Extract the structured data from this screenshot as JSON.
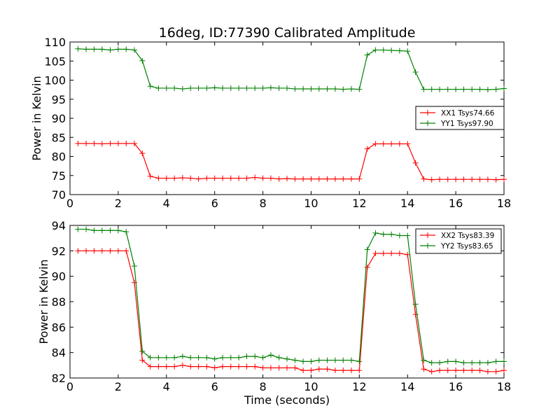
{
  "title": "16deg, ID:77390 Calibrated Amplitude",
  "chart_data": [
    {
      "type": "line",
      "xlabel": "",
      "ylabel": "Power in Kelvin",
      "xlim": [
        0,
        18
      ],
      "ylim": [
        70,
        110
      ],
      "xticks": [
        0,
        2,
        4,
        6,
        8,
        10,
        12,
        14,
        16,
        18
      ],
      "yticks": [
        70,
        75,
        80,
        85,
        90,
        95,
        100,
        105,
        110
      ],
      "grid": false,
      "legend": "right",
      "x": [
        0.33,
        0.67,
        1.0,
        1.33,
        1.67,
        2.0,
        2.33,
        2.67,
        3.0,
        3.33,
        3.67,
        4.0,
        4.33,
        4.67,
        5.0,
        5.33,
        5.67,
        6.0,
        6.33,
        6.67,
        7.0,
        7.33,
        7.67,
        8.0,
        8.33,
        8.67,
        9.0,
        9.33,
        9.67,
        10.0,
        10.33,
        10.67,
        11.0,
        11.33,
        11.67,
        12.0,
        12.33,
        12.67,
        13.0,
        13.33,
        13.67,
        14.0,
        14.33,
        14.67,
        15.0,
        15.33,
        15.67,
        16.0,
        16.33,
        16.67,
        17.0,
        17.33,
        17.67,
        18.0
      ],
      "series": [
        {
          "name": "XX1 Tsys74.66",
          "color": "#ff0000",
          "values": [
            83.4,
            83.4,
            83.4,
            83.3,
            83.4,
            83.4,
            83.4,
            83.4,
            80.8,
            74.8,
            74.3,
            74.3,
            74.3,
            74.4,
            74.3,
            74.1,
            74.3,
            74.3,
            74.3,
            74.3,
            74.3,
            74.3,
            74.5,
            74.3,
            74.3,
            74.1,
            74.2,
            74.1,
            74.1,
            74.1,
            74.1,
            74.1,
            74.1,
            74.1,
            74.1,
            74.1,
            82.0,
            83.3,
            83.3,
            83.3,
            83.3,
            83.3,
            78.3,
            74.1,
            73.9,
            74.0,
            74.0,
            74.0,
            74.0,
            74.0,
            74.0,
            74.0,
            73.9,
            74.0
          ]
        },
        {
          "name": "YY1 Tsys97.90",
          "color": "#008000",
          "values": [
            108.2,
            108.1,
            108.1,
            108.1,
            107.9,
            108.1,
            108.1,
            107.9,
            105.1,
            98.4,
            97.9,
            97.9,
            97.9,
            97.7,
            97.9,
            97.9,
            97.9,
            98.0,
            97.9,
            97.9,
            97.9,
            97.9,
            97.9,
            97.9,
            98.0,
            97.9,
            97.9,
            97.7,
            97.7,
            97.7,
            97.7,
            97.7,
            97.7,
            97.6,
            97.7,
            97.6,
            106.6,
            107.9,
            107.9,
            107.8,
            107.7,
            107.6,
            102.1,
            97.6,
            97.6,
            97.6,
            97.6,
            97.6,
            97.6,
            97.6,
            97.6,
            97.5,
            97.6,
            97.8
          ]
        }
      ]
    },
    {
      "type": "line",
      "xlabel": "Time (seconds)",
      "ylabel": "Power in Kelvin",
      "xlim": [
        0,
        18
      ],
      "ylim": [
        82,
        94
      ],
      "xticks": [
        0,
        2,
        4,
        6,
        8,
        10,
        12,
        14,
        16,
        18
      ],
      "yticks": [
        82,
        84,
        86,
        88,
        90,
        92,
        94
      ],
      "grid": false,
      "legend": "top-right",
      "x": [
        0.33,
        0.67,
        1.0,
        1.33,
        1.67,
        2.0,
        2.33,
        2.67,
        3.0,
        3.33,
        3.67,
        4.0,
        4.33,
        4.67,
        5.0,
        5.33,
        5.67,
        6.0,
        6.33,
        6.67,
        7.0,
        7.33,
        7.67,
        8.0,
        8.33,
        8.67,
        9.0,
        9.33,
        9.67,
        10.0,
        10.33,
        10.67,
        11.0,
        11.33,
        11.67,
        12.0,
        12.33,
        12.67,
        13.0,
        13.33,
        13.67,
        14.0,
        14.33,
        14.67,
        15.0,
        15.33,
        15.67,
        16.0,
        16.33,
        16.67,
        17.0,
        17.33,
        17.67,
        18.0
      ],
      "series": [
        {
          "name": "XX2 Tsys83.39",
          "color": "#ff0000",
          "values": [
            92.0,
            92.0,
            92.0,
            92.0,
            92.0,
            92.0,
            92.0,
            89.5,
            83.4,
            82.9,
            82.9,
            82.9,
            82.9,
            83.0,
            82.9,
            82.9,
            82.9,
            82.8,
            82.9,
            82.9,
            82.9,
            82.9,
            82.9,
            82.8,
            82.8,
            82.8,
            82.8,
            82.8,
            82.6,
            82.6,
            82.7,
            82.7,
            82.6,
            82.6,
            82.6,
            82.6,
            90.7,
            91.8,
            91.8,
            91.8,
            91.8,
            91.7,
            87.0,
            82.7,
            82.5,
            82.6,
            82.6,
            82.6,
            82.6,
            82.6,
            82.6,
            82.5,
            82.5,
            82.6
          ]
        },
        {
          "name": "YY2 Tsys83.65",
          "color": "#008000",
          "values": [
            93.7,
            93.7,
            93.6,
            93.6,
            93.6,
            93.6,
            93.5,
            90.8,
            84.1,
            83.6,
            83.6,
            83.6,
            83.6,
            83.7,
            83.6,
            83.6,
            83.6,
            83.5,
            83.6,
            83.6,
            83.6,
            83.7,
            83.7,
            83.6,
            83.8,
            83.6,
            83.5,
            83.4,
            83.3,
            83.3,
            83.4,
            83.4,
            83.4,
            83.4,
            83.4,
            83.3,
            92.1,
            93.4,
            93.3,
            93.3,
            93.2,
            93.2,
            87.8,
            83.4,
            83.2,
            83.2,
            83.3,
            83.3,
            83.2,
            83.2,
            83.2,
            83.2,
            83.3,
            83.3
          ]
        }
      ]
    }
  ]
}
